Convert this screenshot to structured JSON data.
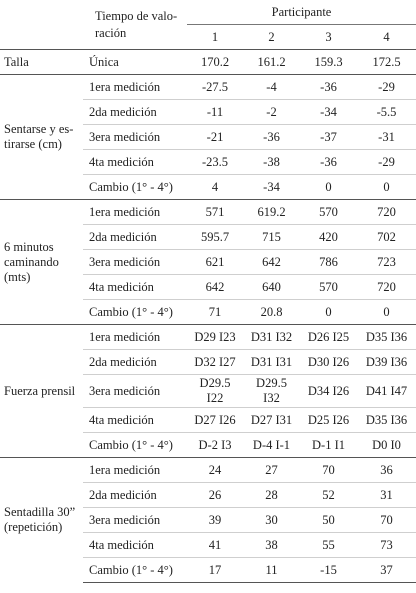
{
  "header": {
    "time_label": [
      "Tiempo de valo-",
      "ración"
    ],
    "participant_label": "Participante",
    "participants": [
      "1",
      "2",
      "3",
      "4"
    ]
  },
  "groups": [
    {
      "label": [
        "Talla"
      ],
      "rows": [
        {
          "time": "Única",
          "values": [
            170.2,
            161.2,
            159.3,
            172.5
          ]
        }
      ]
    },
    {
      "label": [
        "Sentarse y es-",
        "tirarse (cm)"
      ],
      "rows": [
        {
          "time": "1era medición",
          "values": [
            -27.5,
            -4,
            -36,
            -29
          ]
        },
        {
          "time": "2da medición",
          "values": [
            -11,
            -2,
            -34,
            -5.5
          ]
        },
        {
          "time": "3era medición",
          "values": [
            -21,
            -36,
            -37,
            -31
          ]
        },
        {
          "time": "4ta medición",
          "values": [
            -23.5,
            -38,
            -36,
            -29
          ]
        },
        {
          "time": "Cambio (1° - 4°)",
          "values": [
            4,
            -34,
            0,
            0
          ]
        }
      ]
    },
    {
      "label": [
        "6 minutos",
        "caminando",
        "(mts)"
      ],
      "rows": [
        {
          "time": "1era medición",
          "values": [
            571,
            619.2,
            570,
            720
          ]
        },
        {
          "time": "2da medición",
          "values": [
            595.7,
            715,
            420,
            702
          ]
        },
        {
          "time": "3era medición",
          "values": [
            621,
            642,
            786,
            723
          ]
        },
        {
          "time": "4ta medición",
          "values": [
            642,
            640,
            570,
            720
          ]
        },
        {
          "time": "Cambio (1° - 4°)",
          "values": [
            71,
            20.8,
            0,
            0
          ]
        }
      ]
    },
    {
      "label": [
        "Fuerza prensil"
      ],
      "rows": [
        {
          "time": "1era medición",
          "values": [
            "D29 I23",
            "D31 I32",
            "D26 I25",
            "D35 I36"
          ]
        },
        {
          "time": "2da medición",
          "values": [
            "D32 I27",
            "D31 I31",
            "D30 I26",
            "D39 I36"
          ]
        },
        {
          "time": "3era medición",
          "values": [
            "D29.5 I22",
            "D29.5 I32",
            "D34 I26",
            "D41 I47"
          ]
        },
        {
          "time": "4ta medición",
          "values": [
            "D27 I26",
            "D27 I31",
            "D25 I26",
            "D35 I36"
          ]
        },
        {
          "time": "Cambio (1° - 4°)",
          "values": [
            "D-2 I3",
            "D-4 I-1",
            "D-1 I1",
            "D0 I0"
          ]
        }
      ]
    },
    {
      "label": [
        "Sentadilla 30”",
        "(repetición)"
      ],
      "rows": [
        {
          "time": "1era medición",
          "values": [
            24,
            27,
            70,
            36
          ]
        },
        {
          "time": "2da medición",
          "values": [
            26,
            28,
            52,
            31
          ]
        },
        {
          "time": "3era medición",
          "values": [
            39,
            30,
            50,
            70
          ]
        },
        {
          "time": "4ta medición",
          "values": [
            41,
            38,
            55,
            73
          ]
        },
        {
          "time": "Cambio (1° - 4°)",
          "values": [
            17,
            11,
            -15,
            37
          ]
        }
      ]
    }
  ]
}
